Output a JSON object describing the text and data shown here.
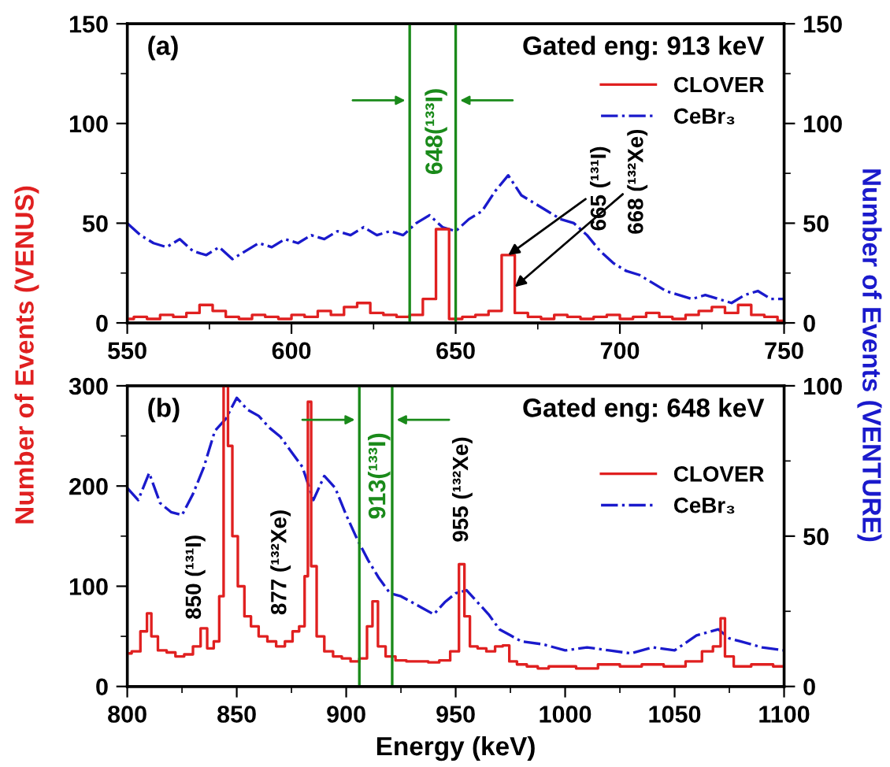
{
  "chart_data": [
    {
      "type": "step",
      "ylabel": "Number of Events (VENUS)",
      "y2label": "Number of Events (VENTURE)",
      "annotations": [
        "(a)",
        "Gated eng: 913 keV",
        {
          "text": "665 (¹³¹I)",
          "x": 666,
          "y": 34
        },
        {
          "text": "668 (¹³²Xe)",
          "x": 668,
          "y": 18
        }
      ],
      "series": [
        {
          "name": "CLOVER",
          "color": "#e02020",
          "line_style": "solid",
          "x": [
            550,
            554,
            558,
            562,
            566,
            570,
            574,
            578,
            582,
            586,
            590,
            594,
            598,
            602,
            606,
            610,
            614,
            618,
            622,
            626,
            630,
            634,
            638,
            642,
            646,
            650,
            654,
            658,
            662,
            666,
            670,
            674,
            678,
            682,
            686,
            690,
            694,
            698,
            702,
            706,
            710,
            714,
            718,
            722,
            726,
            730,
            734,
            738,
            742,
            746,
            750
          ],
          "values": [
            2,
            3,
            2,
            4,
            3,
            5,
            9,
            6,
            3,
            2,
            4,
            3,
            2,
            4,
            3,
            6,
            4,
            8,
            10,
            5,
            4,
            3,
            4,
            12,
            47,
            2,
            3,
            4,
            6,
            34,
            5,
            3,
            2,
            4,
            3,
            2,
            3,
            4,
            2,
            3,
            5,
            3,
            2,
            4,
            6,
            8,
            5,
            9,
            4,
            3,
            1
          ]
        },
        {
          "name": "CeBr₃",
          "type": "line",
          "axis": "y2",
          "color": "#1a1acc",
          "line_style": "dashdot",
          "x": [
            550,
            554,
            558,
            562,
            566,
            570,
            574,
            578,
            582,
            586,
            590,
            594,
            598,
            602,
            606,
            610,
            614,
            618,
            622,
            626,
            630,
            634,
            638,
            642,
            646,
            650,
            654,
            658,
            662,
            666,
            670,
            674,
            678,
            682,
            686,
            690,
            694,
            698,
            702,
            706,
            710,
            714,
            718,
            722,
            726,
            730,
            734,
            738,
            742,
            746,
            750
          ],
          "values": [
            50,
            44,
            40,
            38,
            42,
            36,
            34,
            38,
            32,
            36,
            40,
            38,
            42,
            40,
            44,
            42,
            46,
            44,
            48,
            44,
            46,
            44,
            50,
            54,
            48,
            46,
            52,
            56,
            66,
            74,
            64,
            60,
            56,
            52,
            50,
            44,
            36,
            30,
            26,
            24,
            20,
            16,
            14,
            12,
            14,
            12,
            10,
            14,
            16,
            12,
            12
          ]
        }
      ],
      "xlim": [
        550,
        750
      ],
      "xticks": [
        550,
        {
          "value": 575,
          "label": null
        },
        600,
        {
          "value": 625,
          "label": null
        },
        650,
        {
          "value": 675,
          "label": null
        },
        700,
        {
          "value": 725,
          "label": null
        },
        750
      ],
      "ylim": [
        0,
        150
      ],
      "yticks": [
        0,
        {
          "value": 25,
          "label": null
        },
        50,
        {
          "value": 75,
          "label": null
        },
        100,
        {
          "value": 125,
          "label": null
        },
        150
      ],
      "y2lim": [
        0,
        150
      ],
      "y2ticks": [
        0,
        {
          "value": 25,
          "label": null
        },
        50,
        {
          "value": 75,
          "label": null
        },
        100,
        {
          "value": 125,
          "label": null
        },
        150
      ],
      "ref_lines": [
        {
          "axis": "x",
          "value": 636,
          "color": "#1a8a1a"
        },
        {
          "axis": "x",
          "value": 650,
          "color": "#1a8a1a",
          "label": "648(¹³³I)"
        }
      ],
      "legend": "top right",
      "grid": false
    },
    {
      "type": "step",
      "xlabel": "Energy (keV)",
      "annotations": [
        "(b)",
        "Gated eng: 648 keV",
        {
          "text": "850 (¹³¹I)",
          "x": 835,
          "y": 58
        },
        {
          "text": "877 (¹³²Xe)",
          "x": 870,
          "y": 45
        },
        {
          "text": "955 (¹³²Xe)",
          "x": 953,
          "y": 122
        }
      ],
      "series": [
        {
          "name": "CLOVER",
          "color": "#e02020",
          "line_style": "solid",
          "x": [
            800,
            804,
            808,
            810,
            812,
            816,
            820,
            824,
            828,
            832,
            835,
            838,
            841,
            843,
            845,
            847,
            849,
            852,
            855,
            858,
            862,
            866,
            870,
            874,
            877,
            880,
            882,
            883,
            885,
            888,
            892,
            896,
            900,
            904,
            908,
            911,
            913,
            916,
            920,
            925,
            930,
            935,
            940,
            945,
            950,
            953,
            955,
            958,
            962,
            966,
            970,
            973,
            976,
            980,
            985,
            990,
            995,
            1000,
            1010,
            1020,
            1030,
            1040,
            1050,
            1060,
            1065,
            1070,
            1072,
            1074,
            1080,
            1090,
            1100
          ],
          "values": [
            33,
            35,
            55,
            73,
            50,
            36,
            34,
            30,
            32,
            40,
            58,
            38,
            45,
            90,
            300,
            240,
            150,
            100,
            70,
            60,
            50,
            45,
            40,
            45,
            55,
            60,
            110,
            284,
            120,
            50,
            35,
            30,
            28,
            25,
            28,
            60,
            85,
            40,
            30,
            26,
            25,
            25,
            24,
            26,
            35,
            122,
            70,
            40,
            38,
            35,
            40,
            41,
            25,
            22,
            20,
            18,
            20,
            20,
            18,
            22,
            20,
            22,
            20,
            25,
            35,
            40,
            68,
            30,
            20,
            22,
            20
          ]
        },
        {
          "name": "CeBr₃",
          "type": "line",
          "axis": "y2",
          "color": "#1a1acc",
          "line_style": "dashdot",
          "x": [
            800,
            805,
            810,
            815,
            820,
            825,
            830,
            835,
            840,
            845,
            850,
            855,
            860,
            865,
            870,
            875,
            880,
            885,
            890,
            895,
            900,
            905,
            910,
            915,
            920,
            925,
            930,
            935,
            940,
            945,
            950,
            955,
            960,
            965,
            970,
            975,
            980,
            990,
            1000,
            1010,
            1020,
            1030,
            1040,
            1050,
            1060,
            1065,
            1070,
            1075,
            1080,
            1090,
            1100
          ],
          "values": [
            66,
            62,
            71,
            61,
            58,
            57,
            64,
            73,
            85,
            89,
            96,
            92,
            90,
            86,
            83,
            78,
            73,
            62,
            70,
            66,
            57,
            49,
            42,
            36,
            31,
            30,
            28,
            26,
            24,
            28,
            31,
            32,
            28,
            24,
            19,
            17,
            15,
            14,
            12,
            13,
            12,
            11,
            13,
            12,
            17,
            18,
            19,
            16,
            15,
            13,
            12
          ]
        }
      ],
      "xlim": [
        800,
        1100
      ],
      "xticks": [
        800,
        {
          "value": 825,
          "label": null
        },
        850,
        {
          "value": 875,
          "label": null
        },
        900,
        {
          "value": 925,
          "label": null
        },
        950,
        {
          "value": 975,
          "label": null
        },
        1000,
        {
          "value": 1025,
          "label": null
        },
        1050,
        {
          "value": 1075,
          "label": null
        },
        1100
      ],
      "ylim": [
        0,
        300
      ],
      "yticks": [
        0,
        {
          "value": 50,
          "label": null
        },
        100,
        {
          "value": 150,
          "label": null
        },
        200,
        {
          "value": 250,
          "label": null
        },
        300
      ],
      "y2lim": [
        0,
        100
      ],
      "y2ticks": [
        0,
        {
          "value": 25,
          "label": null
        },
        50,
        {
          "value": 75,
          "label": null
        },
        100
      ],
      "ref_lines": [
        {
          "axis": "x",
          "value": 906,
          "color": "#1a8a1a",
          "label": "913(¹³³I)"
        },
        {
          "axis": "x",
          "value": 921,
          "color": "#1a8a1a"
        }
      ],
      "legend": "top right",
      "grid": false
    }
  ]
}
